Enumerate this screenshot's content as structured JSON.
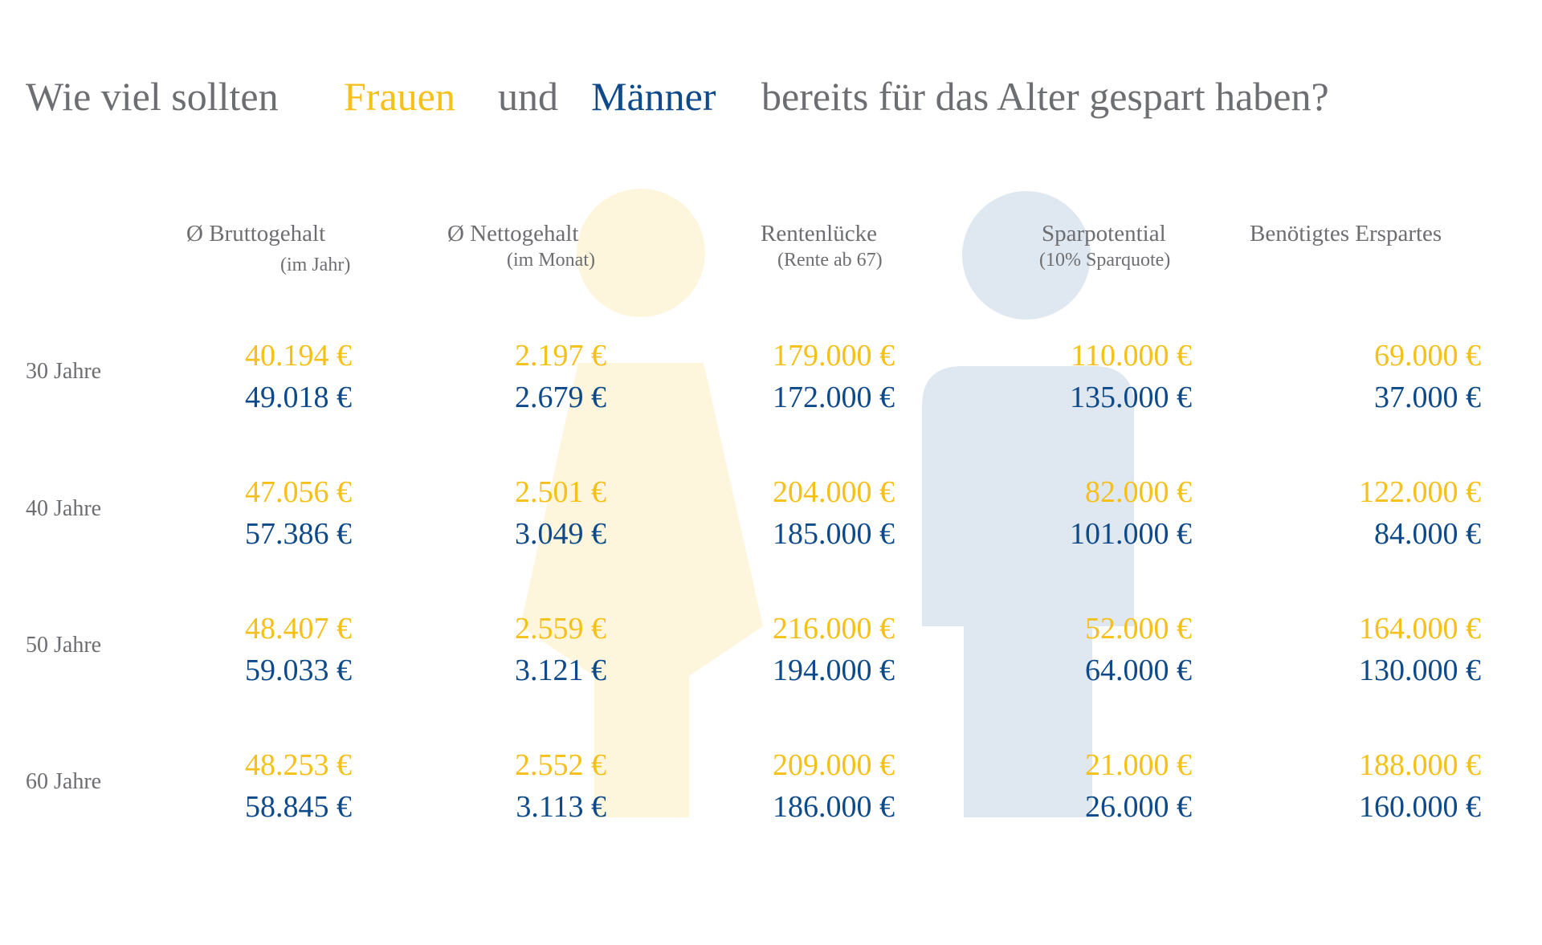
{
  "headline": {
    "part1": "Wie viel sollten",
    "women": "Frauen",
    "and": "und",
    "men": "Männer",
    "part2": "bereits für das Alter gespart haben?"
  },
  "colors": {
    "women": "#f5c017",
    "men": "#0e4a8a",
    "text_gray": "#6d6e71",
    "women_figure": "#fdf6dc",
    "men_figure": "#dfe7f0"
  },
  "columns": [
    {
      "title": "Ø Bruttogehalt",
      "sub": "(im Jahr)"
    },
    {
      "title": "Ø Nettogehalt",
      "sub": "(im Monat)"
    },
    {
      "title": "Rentenlücke",
      "sub": "(Rente ab 67)"
    },
    {
      "title": "Sparpotential",
      "sub": "(10% Sparquote)"
    },
    {
      "title": "Benötigtes Erspartes",
      "sub": ""
    }
  ],
  "rows": [
    {
      "label": "30 Jahre",
      "women": [
        "40.194 €",
        "2.197 €",
        "179.000 €",
        "110.000 €",
        "69.000 €"
      ],
      "men": [
        "49.018 €",
        "2.679 €",
        "172.000 €",
        "135.000 €",
        "37.000 €"
      ]
    },
    {
      "label": "40 Jahre",
      "women": [
        "47.056 €",
        "2.501 €",
        "204.000 €",
        "82.000 €",
        "122.000 €"
      ],
      "men": [
        "57.386 €",
        "3.049 €",
        "185.000 €",
        "101.000 €",
        "84.000 €"
      ]
    },
    {
      "label": "50 Jahre",
      "women": [
        "48.407 €",
        "2.559 €",
        "216.000 €",
        "52.000 €",
        "164.000 €"
      ],
      "men": [
        "59.033 €",
        "3.121 €",
        "194.000 €",
        "64.000 €",
        "130.000 €"
      ]
    },
    {
      "label": "60 Jahre",
      "women": [
        "48.253 €",
        "2.552 €",
        "209.000 €",
        "21.000 €",
        "188.000 €"
      ],
      "men": [
        "58.845 €",
        "3.113 €",
        "186.000 €",
        "26.000 €",
        "160.000 €"
      ]
    }
  ],
  "icons": {
    "women_figure": "woman-silhouette-icon",
    "men_figure": "man-silhouette-icon"
  }
}
